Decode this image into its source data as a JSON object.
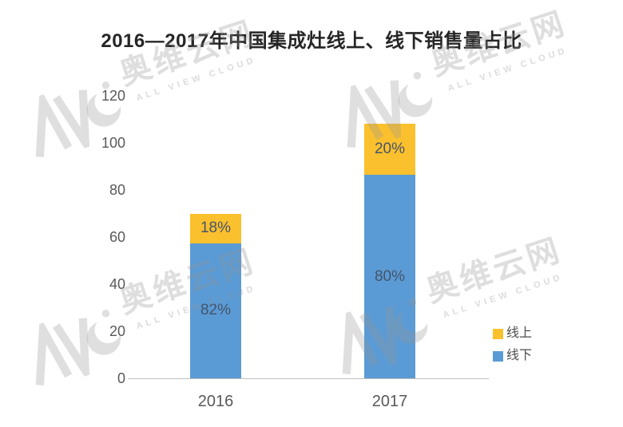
{
  "chart_data": {
    "type": "bar",
    "stacked": true,
    "title": "2016—2017年中国集成灶线上、线下销售量占比",
    "categories": [
      "2016",
      "2017"
    ],
    "series": [
      {
        "name": "线下",
        "color": "#5B9BD5",
        "values": [
          57.4,
          86.4
        ],
        "labels": [
          "82%",
          "80%"
        ]
      },
      {
        "name": "线上",
        "color": "#FBC02D",
        "values": [
          12.6,
          21.6
        ],
        "labels": [
          "18%",
          "20%"
        ]
      }
    ],
    "totals": [
      70,
      108
    ],
    "xlabel": "",
    "ylabel": "",
    "ylim": [
      0,
      120
    ],
    "yticks": [
      0,
      20,
      40,
      60,
      80,
      100,
      120
    ],
    "grid": false,
    "legend_position": "right-bottom",
    "legend_order": [
      "线上",
      "线下"
    ]
  },
  "watermark": {
    "logo": "AVC",
    "brand": "奥维云网",
    "sub": "ALL VIEW CLOUD"
  },
  "colors": {
    "online": "#FBC02D",
    "offline": "#5B9BD5",
    "axis_line": "#BFBFBF",
    "tick_text": "#595959",
    "segment_label_text": "#44546A",
    "title_text": "#262626"
  }
}
